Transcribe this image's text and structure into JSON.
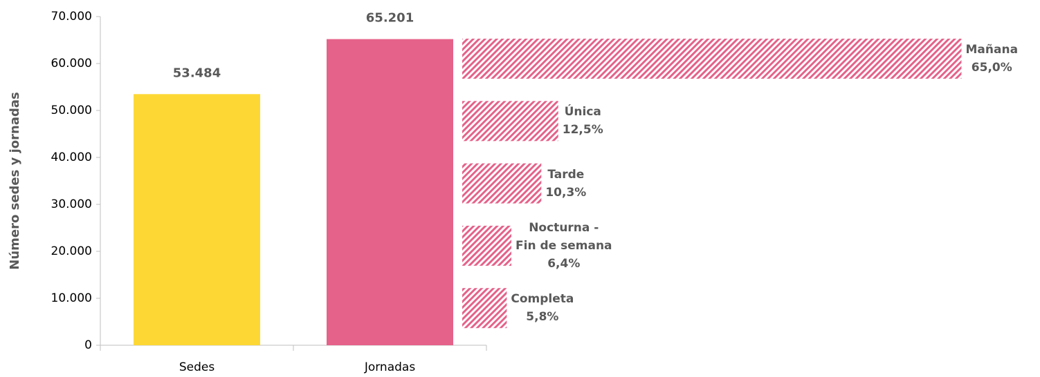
{
  "chart_data": {
    "type": "bar",
    "y_label": "Número sedes y jornadas",
    "categories": [
      "Sedes",
      "Jornadas"
    ],
    "values": [
      53484,
      65201
    ],
    "value_labels": [
      "53.484",
      "65.201"
    ],
    "colors": [
      "#fdd835",
      "#e5628a"
    ],
    "ylim": [
      0,
      70000
    ],
    "yticks": [
      0,
      {
        "value": 10000,
        "label": "10.000"
      },
      {
        "value": 20000,
        "label": "20.000"
      },
      {
        "value": 30000,
        "label": "30.000"
      },
      {
        "value": 40000,
        "label": "40.000"
      },
      {
        "value": 50000,
        "label": "50.000"
      },
      {
        "value": 60000,
        "label": "60.000"
      },
      {
        "value": 70000,
        "label": "70.000"
      }
    ],
    "breakdown": {
      "type": "bar",
      "orientation": "horizontal",
      "categories": [
        "Mañana",
        "Única",
        "Tarde",
        "Nocturna -\nFin de semana",
        "Completa"
      ],
      "values": [
        65.0,
        12.5,
        10.3,
        6.4,
        5.8
      ],
      "value_labels": [
        "65,0%",
        "12,5%",
        "10,3%",
        "6,4%",
        "5,8%"
      ],
      "color": "#e5628a",
      "pattern": "hatch"
    }
  }
}
